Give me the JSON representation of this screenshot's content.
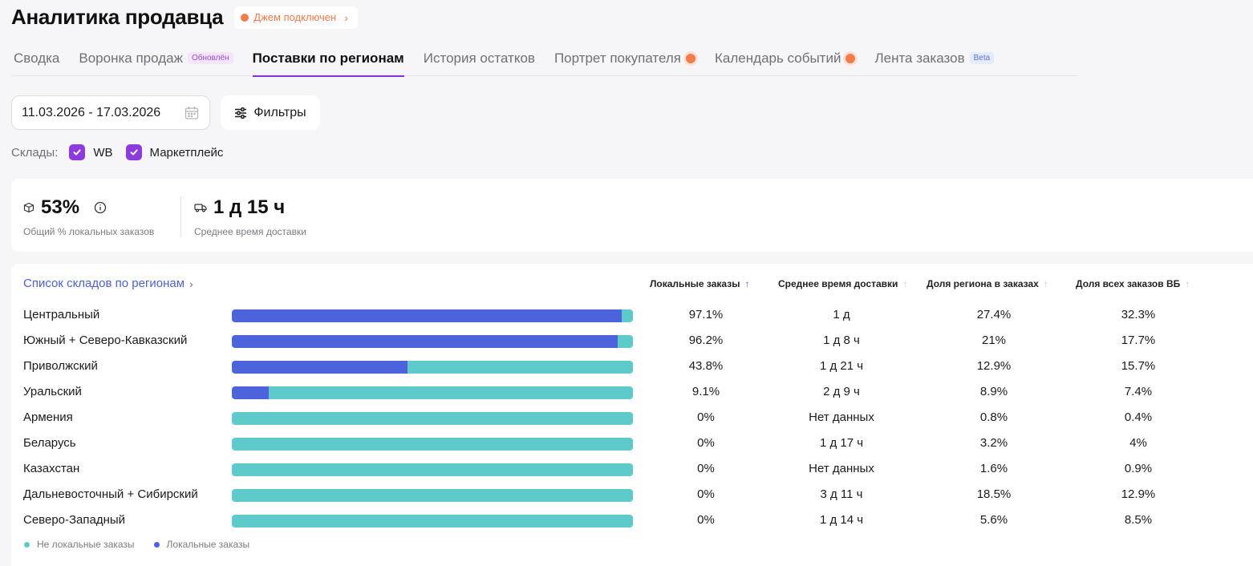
{
  "header": {
    "title": "Аналитика продавца",
    "jam_badge": "Джем подключен"
  },
  "tabs": [
    {
      "label": "Сводка",
      "badge": ""
    },
    {
      "label": "Воронка продаж",
      "badge": "Обновлён"
    },
    {
      "label": "Поставки по регионам",
      "badge": "",
      "active": true
    },
    {
      "label": "История остатков",
      "badge": ""
    },
    {
      "label": "Портрет покупателя",
      "badge": ""
    },
    {
      "label": "Календарь событий",
      "badge": ""
    },
    {
      "label": "Лента заказов",
      "badge": "Beta"
    }
  ],
  "filters": {
    "date_range": "11.03.2026 - 17.03.2026",
    "filters_label": "Фильтры",
    "warehouses_label": "Склады:",
    "warehouse_options": [
      {
        "label": "WB",
        "checked": true
      },
      {
        "label": "Маркетплейс",
        "checked": true
      }
    ]
  },
  "stats": {
    "local_percent": "53%",
    "local_percent_label": "Общий % локальных заказов",
    "avg_delivery": "1 д 15 ч",
    "avg_delivery_label": "Среднее время доставки"
  },
  "table": {
    "list_link": "Список складов по регионам",
    "columns": {
      "local_orders": "Локальные заказы",
      "avg_delivery": "Среднее время доставки",
      "region_share": "Доля региона в заказах",
      "wb_share": "Доля всех заказов ВБ"
    },
    "rows": [
      {
        "region": "Центральный",
        "local_fraction": 0.971,
        "local": "97.1%",
        "delivery": "1 д",
        "region_share": "27.4%",
        "wb_share": "32.3%"
      },
      {
        "region": "Южный + Северо-Кавказский",
        "local_fraction": 0.962,
        "local": "96.2%",
        "delivery": "1 д 8 ч",
        "region_share": "21%",
        "wb_share": "17.7%"
      },
      {
        "region": "Приволжский",
        "local_fraction": 0.438,
        "local": "43.8%",
        "delivery": "1 д 21 ч",
        "region_share": "12.9%",
        "wb_share": "15.7%"
      },
      {
        "region": "Уральский",
        "local_fraction": 0.091,
        "local": "9.1%",
        "delivery": "2 д 9 ч",
        "region_share": "8.9%",
        "wb_share": "7.4%"
      },
      {
        "region": "Армения",
        "local_fraction": 0,
        "local": "0%",
        "delivery": "Нет данных",
        "region_share": "0.8%",
        "wb_share": "0.4%"
      },
      {
        "region": "Беларусь",
        "local_fraction": 0,
        "local": "0%",
        "delivery": "1 д 17 ч",
        "region_share": "3.2%",
        "wb_share": "4%"
      },
      {
        "region": "Казахстан",
        "local_fraction": 0,
        "local": "0%",
        "delivery": "Нет данных",
        "region_share": "1.6%",
        "wb_share": "0.9%"
      },
      {
        "region": "Дальневосточный + Сибирский",
        "local_fraction": 0,
        "local": "0%",
        "delivery": "3 д 11 ч",
        "region_share": "18.5%",
        "wb_share": "12.9%"
      },
      {
        "region": "Северо-Западный",
        "local_fraction": 0,
        "local": "0%",
        "delivery": "1 д 14 ч",
        "region_share": "5.6%",
        "wb_share": "8.5%"
      }
    ],
    "legend": {
      "non_local": "Не локальные заказы",
      "local": "Локальные заказы"
    }
  },
  "colors": {
    "accent": "#8d3adf",
    "local_bar": "#4d63dc",
    "non_local_bar": "#5ecbca",
    "jam": "#f47c4c",
    "link": "#4f62c7"
  }
}
